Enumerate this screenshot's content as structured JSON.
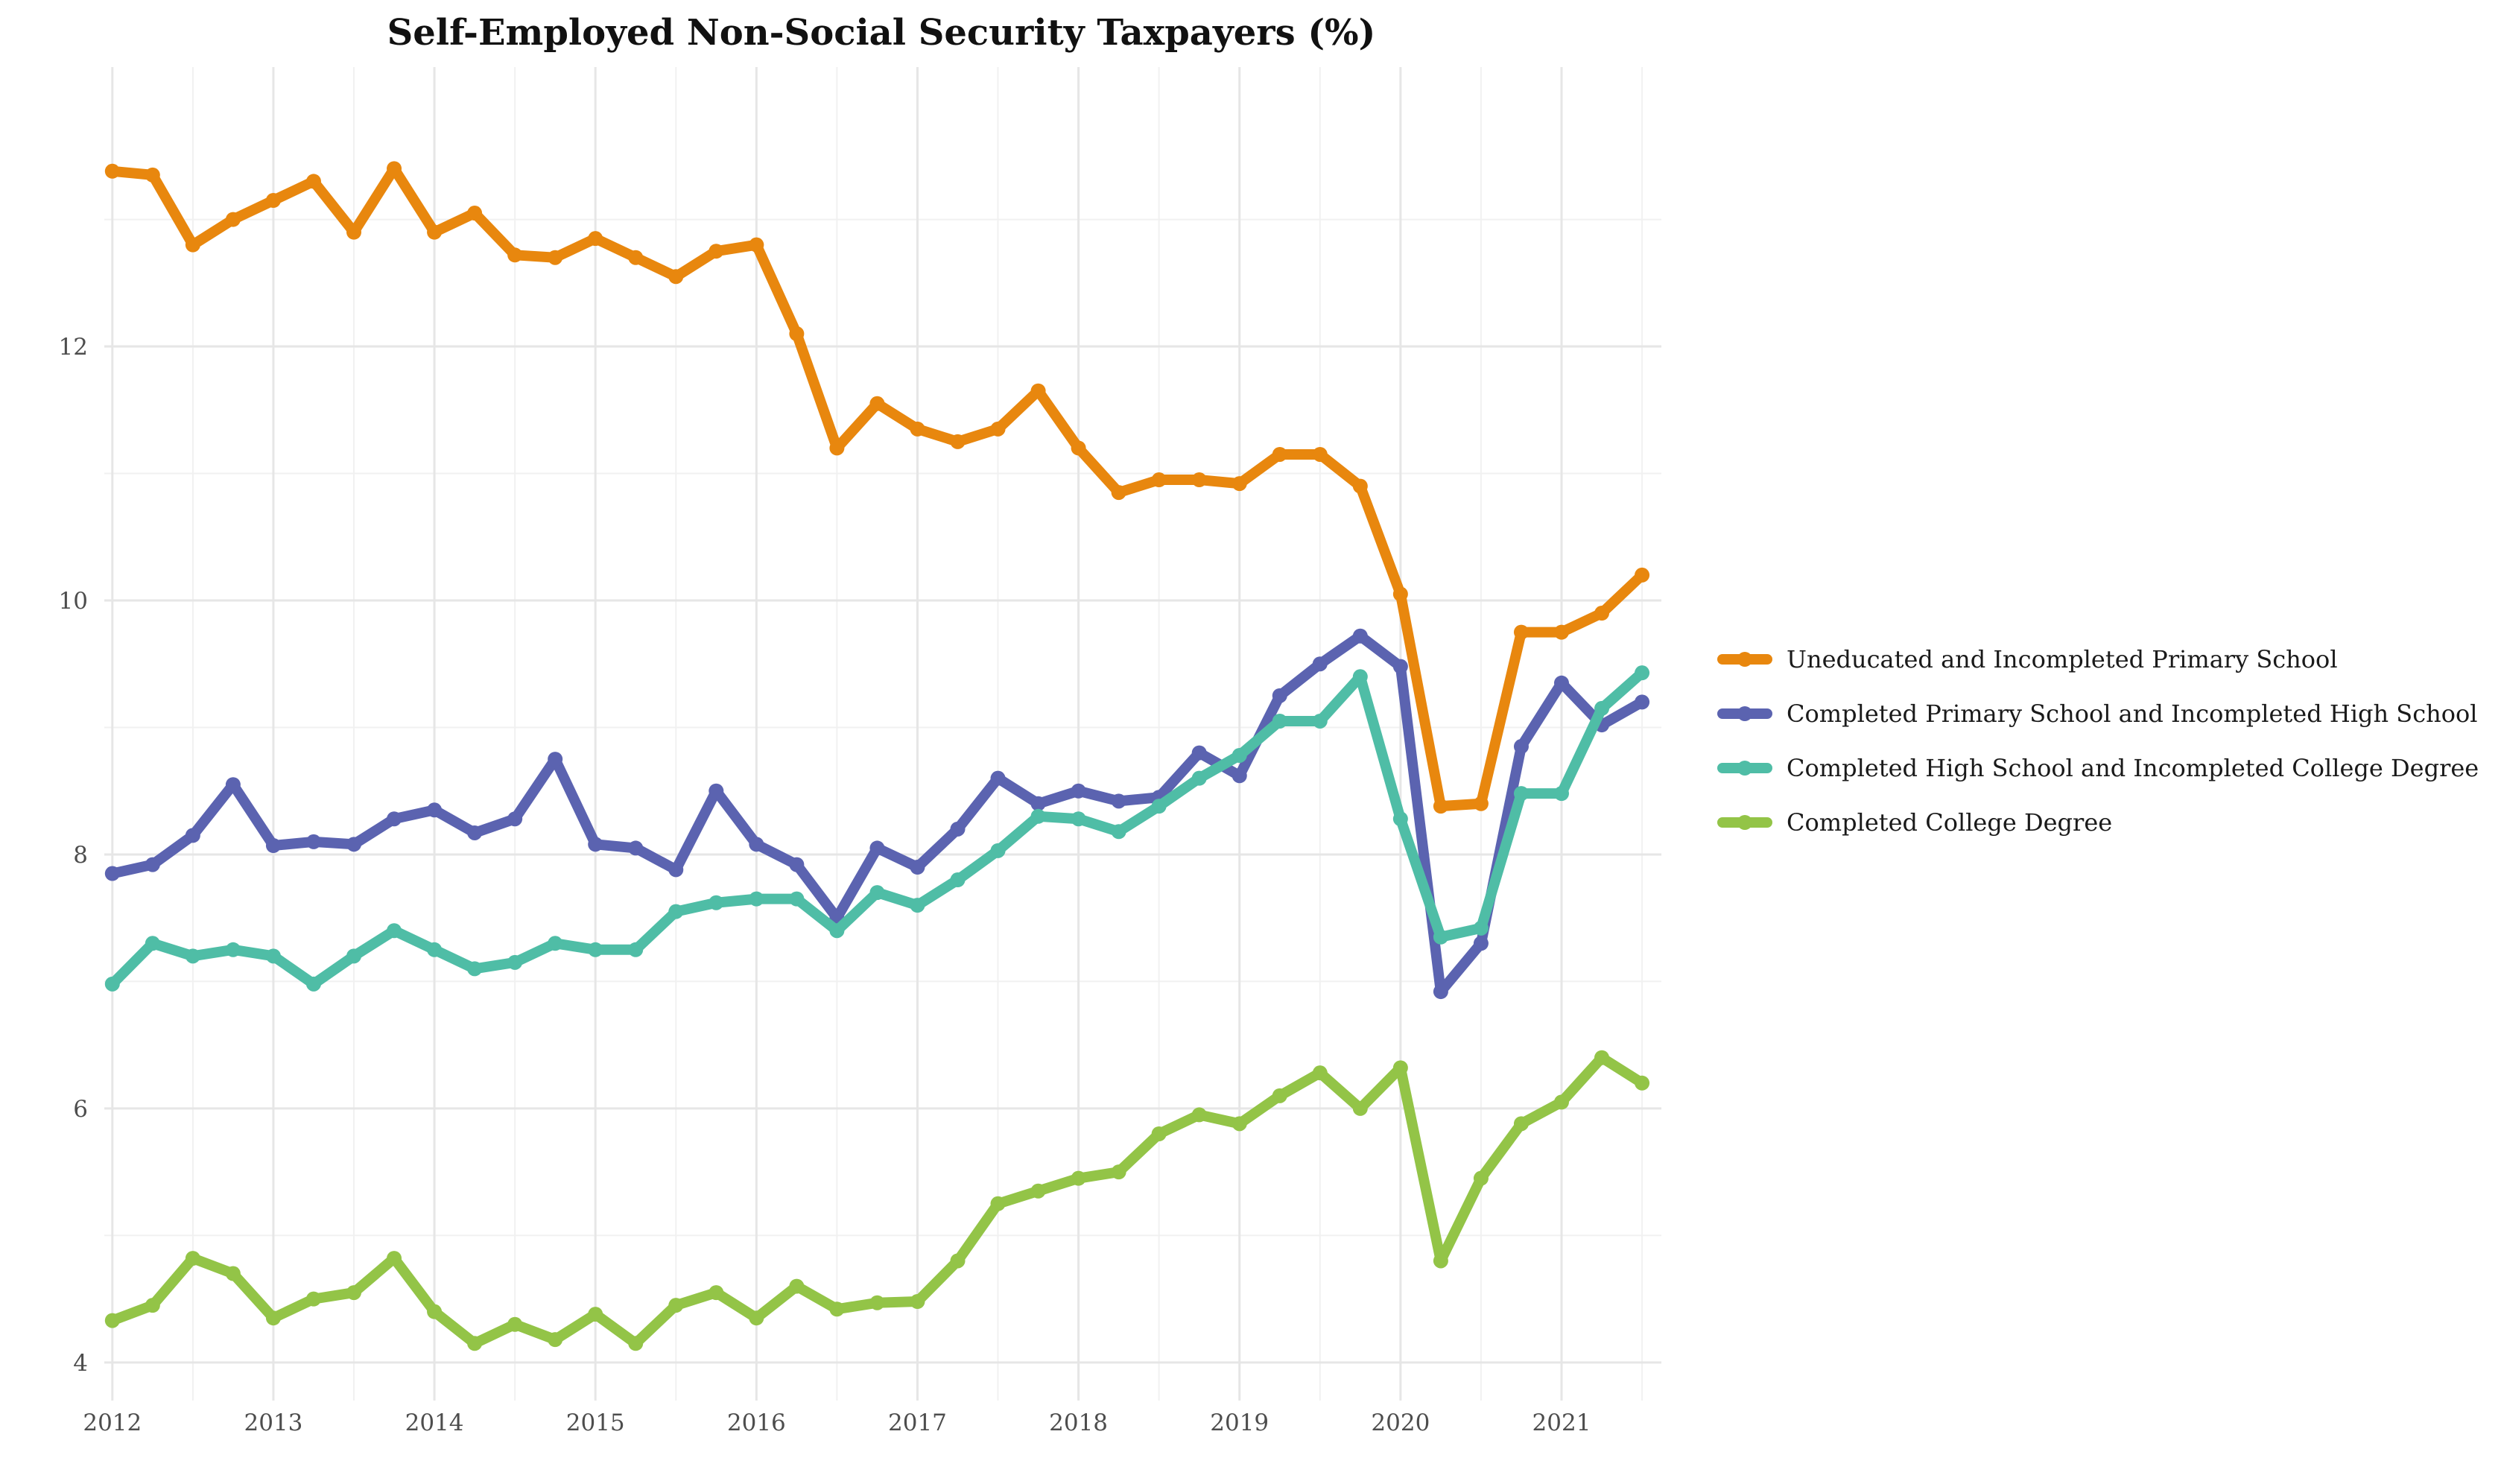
{
  "chart_data": {
    "type": "line",
    "title": "Self-Employed Non-Social Security Taxpayers (%)",
    "xlabel": "",
    "ylabel": "",
    "xlim": [
      2011.95,
      2021.62
    ],
    "ylim": [
      3.7,
      14.2
    ],
    "x_ticks": [
      2012,
      2013,
      2014,
      2015,
      2016,
      2017,
      2018,
      2019,
      2020,
      2021
    ],
    "y_ticks": [
      4,
      6,
      8,
      10,
      12
    ],
    "grid": true,
    "legend_position": "right",
    "x": [
      2012.0,
      2012.25,
      2012.5,
      2012.75,
      2013.0,
      2013.25,
      2013.5,
      2013.75,
      2014.0,
      2014.25,
      2014.5,
      2014.75,
      2015.0,
      2015.25,
      2015.5,
      2015.75,
      2016.0,
      2016.25,
      2016.5,
      2016.75,
      2017.0,
      2017.25,
      2017.5,
      2017.75,
      2018.0,
      2018.25,
      2018.5,
      2018.75,
      2019.0,
      2019.25,
      2019.5,
      2019.75,
      2020.0,
      2020.25,
      2020.5,
      2020.75,
      2021.0,
      2021.25,
      2021.5
    ],
    "series": [
      {
        "name": "Uneducated and Incompleted Primary School",
        "color": "#e8870e",
        "values": [
          13.38,
          13.35,
          12.8,
          13.0,
          13.15,
          13.3,
          12.9,
          13.4,
          12.9,
          13.05,
          12.72,
          12.7,
          12.85,
          12.7,
          12.55,
          12.75,
          12.8,
          12.1,
          11.2,
          11.55,
          11.35,
          11.25,
          11.35,
          11.65,
          11.2,
          10.85,
          10.95,
          10.95,
          10.92,
          11.15,
          11.15,
          10.9,
          10.05,
          8.38,
          8.4,
          9.75,
          9.75,
          9.9,
          10.2
        ]
      },
      {
        "name": "Completed Primary School and Incompleted High School",
        "color": "#5b63b0",
        "values": [
          7.85,
          7.92,
          8.15,
          8.55,
          8.07,
          8.1,
          8.08,
          8.28,
          8.35,
          8.17,
          8.28,
          8.75,
          8.08,
          8.05,
          7.88,
          8.5,
          8.08,
          7.92,
          7.5,
          8.05,
          7.9,
          8.2,
          8.6,
          8.4,
          8.5,
          8.42,
          8.45,
          8.8,
          8.62,
          9.25,
          9.5,
          9.72,
          9.48,
          6.92,
          7.3,
          8.85,
          9.35,
          9.02,
          9.2
        ]
      },
      {
        "name": "Completed High School and Incompleted College Degree",
        "color": "#4fbda6",
        "values": [
          6.98,
          7.3,
          7.2,
          7.25,
          7.2,
          6.98,
          7.2,
          7.4,
          7.25,
          7.1,
          7.15,
          7.3,
          7.25,
          7.25,
          7.55,
          7.62,
          7.65,
          7.65,
          7.4,
          7.7,
          7.6,
          7.8,
          8.03,
          8.3,
          8.28,
          8.18,
          8.38,
          8.6,
          8.78,
          9.05,
          9.05,
          9.4,
          8.28,
          7.35,
          7.42,
          8.48,
          8.48,
          9.15,
          9.43
        ]
      },
      {
        "name": "Completed College Degree",
        "color": "#93c447",
        "values": [
          4.33,
          4.45,
          4.82,
          4.7,
          4.35,
          4.5,
          4.55,
          4.82,
          4.4,
          4.15,
          4.3,
          4.18,
          4.38,
          4.15,
          4.45,
          4.55,
          4.35,
          4.6,
          4.42,
          4.47,
          4.48,
          4.8,
          5.25,
          5.35,
          5.45,
          5.5,
          5.8,
          5.95,
          5.88,
          6.1,
          6.28,
          6.0,
          6.32,
          4.8,
          5.45,
          5.88,
          6.05,
          6.4,
          6.2
        ]
      }
    ]
  }
}
